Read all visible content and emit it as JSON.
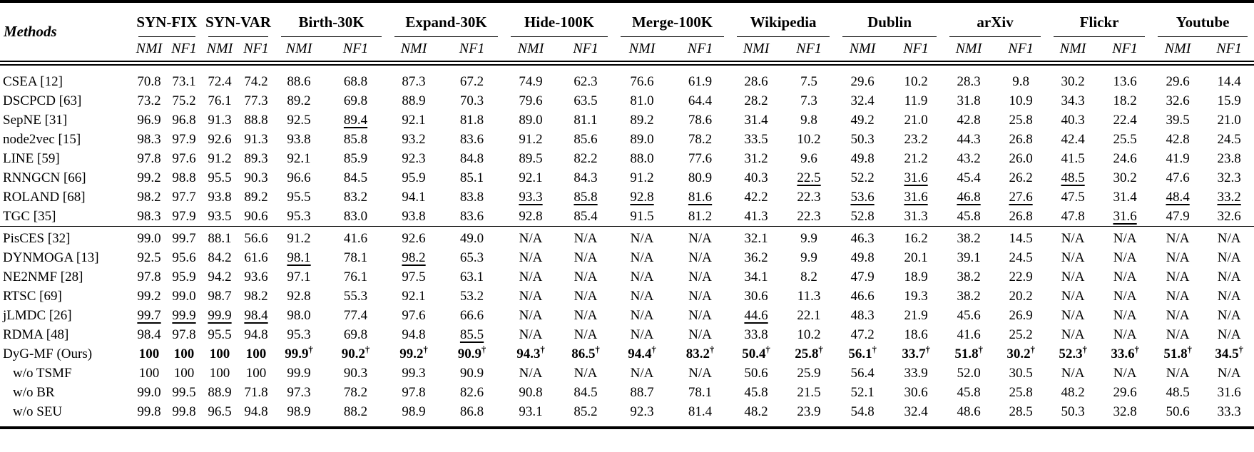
{
  "page": {
    "background": "#ffffff",
    "text_color": "#000000"
  },
  "table": {
    "methods_header": "Methods",
    "subheaders": [
      "NMI",
      "NF1"
    ],
    "datasets": [
      "SYN-FIX",
      "SYN-VAR",
      "Birth-30K",
      "Expand-30K",
      "Hide-100K",
      "Merge-100K",
      "Wikipedia",
      "Dublin",
      "arXiv",
      "Flickr",
      "Youtube"
    ],
    "marks": {
      "dagger": "†",
      "bold_flag": "b",
      "underline_flag": "u",
      "dagger_flag": "d",
      "na": "N/A"
    },
    "groups": [
      {
        "rows": [
          {
            "method": "CSEA [12]",
            "values": [
              "70.8",
              "73.1",
              "72.4",
              "74.2",
              "88.6",
              "68.8",
              "87.3",
              "67.2",
              "74.9",
              "62.3",
              "76.6",
              "61.9",
              "28.6",
              "7.5",
              "29.6",
              "10.2",
              "28.3",
              "9.8",
              "30.2",
              "13.6",
              "29.6",
              "14.4"
            ]
          },
          {
            "method": "DSCPCD [63]",
            "values": [
              "73.2",
              "75.2",
              "76.1",
              "77.3",
              "89.2",
              "69.8",
              "88.9",
              "70.3",
              "79.6",
              "63.5",
              "81.0",
              "64.4",
              "28.2",
              "7.3",
              "32.4",
              "11.9",
              "31.8",
              "10.9",
              "34.3",
              "18.2",
              "32.6",
              "15.9"
            ]
          },
          {
            "method": "SepNE [31]",
            "values": [
              "96.9",
              "96.8",
              "91.3",
              "88.8",
              "92.5",
              "89.4|u",
              "92.1",
              "81.8",
              "89.0",
              "81.1",
              "89.2",
              "78.6",
              "31.4",
              "9.8",
              "49.2",
              "21.0",
              "42.8",
              "25.8",
              "40.3",
              "22.4",
              "39.5",
              "21.0"
            ]
          },
          {
            "method": "node2vec [15]",
            "values": [
              "98.3",
              "97.9",
              "92.6",
              "91.3",
              "93.8",
              "85.8",
              "93.2",
              "83.6",
              "91.2",
              "85.6",
              "89.0",
              "78.2",
              "33.5",
              "10.2",
              "50.3",
              "23.2",
              "44.3",
              "26.8",
              "42.4",
              "25.5",
              "42.8",
              "24.5"
            ]
          },
          {
            "method": "LINE [59]",
            "values": [
              "97.8",
              "97.6",
              "91.2",
              "89.3",
              "92.1",
              "85.9",
              "92.3",
              "84.8",
              "89.5",
              "82.2",
              "88.0",
              "77.6",
              "31.2",
              "9.6",
              "49.8",
              "21.2",
              "43.2",
              "26.0",
              "41.5",
              "24.6",
              "41.9",
              "23.8"
            ]
          },
          {
            "method": "RNNGCN [66]",
            "values": [
              "99.2",
              "98.8",
              "95.5",
              "90.3",
              "96.6",
              "84.5",
              "95.9",
              "85.1",
              "92.1",
              "84.3",
              "91.2",
              "80.9",
              "40.3",
              "22.5|u",
              "52.2",
              "31.6|u",
              "45.4",
              "26.2",
              "48.5|u",
              "30.2",
              "47.6",
              "32.3"
            ]
          },
          {
            "method": "ROLAND [68]",
            "values": [
              "98.2",
              "97.7",
              "93.8",
              "89.2",
              "95.5",
              "83.2",
              "94.1",
              "83.8",
              "93.3|u",
              "85.8|u",
              "92.8|u",
              "81.6|u",
              "42.2",
              "22.3",
              "53.6|u",
              "31.6|u",
              "46.8|u",
              "27.6|u",
              "47.5",
              "31.4",
              "48.4|u",
              "33.2|u"
            ]
          },
          {
            "method": "TGC [35]",
            "values": [
              "98.3",
              "97.9",
              "93.5",
              "90.6",
              "95.3",
              "83.0",
              "93.8",
              "83.6",
              "92.8",
              "85.4",
              "91.5",
              "81.2",
              "41.3",
              "22.3",
              "52.8",
              "31.3",
              "45.8",
              "26.8",
              "47.8",
              "31.6|u",
              "47.9",
              "32.6"
            ]
          }
        ]
      },
      {
        "rows": [
          {
            "method": "PisCES [32]",
            "values": [
              "99.0",
              "99.7",
              "88.1",
              "56.6",
              "91.2",
              "41.6",
              "92.6",
              "49.0",
              "N/A",
              "N/A",
              "N/A",
              "N/A",
              "32.1",
              "9.9",
              "46.3",
              "16.2",
              "38.2",
              "14.5",
              "N/A",
              "N/A",
              "N/A",
              "N/A"
            ]
          },
          {
            "method": "DYNMOGA [13]",
            "values": [
              "92.5",
              "95.6",
              "84.2",
              "61.6",
              "98.1|u",
              "78.1",
              "98.2|u",
              "65.3",
              "N/A",
              "N/A",
              "N/A",
              "N/A",
              "36.2",
              "9.9",
              "49.8",
              "20.1",
              "39.1",
              "24.5",
              "N/A",
              "N/A",
              "N/A",
              "N/A"
            ]
          },
          {
            "method": "NE2NMF [28]",
            "values": [
              "97.8",
              "95.9",
              "94.2",
              "93.6",
              "97.1",
              "76.1",
              "97.5",
              "63.1",
              "N/A",
              "N/A",
              "N/A",
              "N/A",
              "34.1",
              "8.2",
              "47.9",
              "18.9",
              "38.2",
              "22.9",
              "N/A",
              "N/A",
              "N/A",
              "N/A"
            ]
          },
          {
            "method": "RTSC [69]",
            "values": [
              "99.2",
              "99.0",
              "98.7",
              "98.2",
              "92.8",
              "55.3",
              "92.1",
              "53.2",
              "N/A",
              "N/A",
              "N/A",
              "N/A",
              "30.6",
              "11.3",
              "46.6",
              "19.3",
              "38.2",
              "20.2",
              "N/A",
              "N/A",
              "N/A",
              "N/A"
            ]
          },
          {
            "method": "jLMDC [26]",
            "values": [
              "99.7|u",
              "99.9|u",
              "99.9|u",
              "98.4|u",
              "98.0",
              "77.4",
              "97.6",
              "66.6",
              "N/A",
              "N/A",
              "N/A",
              "N/A",
              "44.6|u",
              "22.1",
              "48.3",
              "21.9",
              "45.6",
              "26.9",
              "N/A",
              "N/A",
              "N/A",
              "N/A"
            ]
          },
          {
            "method": "RDMA [48]",
            "values": [
              "98.4",
              "97.8",
              "95.5",
              "94.8",
              "95.3",
              "69.8",
              "94.8",
              "85.5|u",
              "N/A",
              "N/A",
              "N/A",
              "N/A",
              "33.8",
              "10.2",
              "47.2",
              "18.6",
              "41.6",
              "25.2",
              "N/A",
              "N/A",
              "N/A",
              "N/A"
            ]
          },
          {
            "method": "DyG-MF (Ours)",
            "values": [
              "100|b",
              "100|b",
              "100|b",
              "100|b",
              "99.9|bd",
              "90.2|bd",
              "99.2|bd",
              "90.9|bd",
              "94.3|bd",
              "86.5|bd",
              "94.4|bd",
              "83.2|bd",
              "50.4|bd",
              "25.8|bd",
              "56.1|bd",
              "33.7|bd",
              "51.8|bd",
              "30.2|bd",
              "52.3|bd",
              "33.6|bd",
              "51.8|bd",
              "34.5|bd"
            ]
          },
          {
            "method": "w/o TSMF",
            "values": [
              "100",
              "100",
              "100",
              "100",
              "99.9",
              "90.3",
              "99.3",
              "90.9",
              "N/A",
              "N/A",
              "N/A",
              "N/A",
              "50.6",
              "25.9",
              "56.4",
              "33.9",
              "52.0",
              "30.5",
              "N/A",
              "N/A",
              "N/A",
              "N/A"
            ]
          },
          {
            "method": "w/o BR",
            "values": [
              "99.0",
              "99.5",
              "88.9",
              "71.8",
              "97.3",
              "78.2",
              "97.8",
              "82.6",
              "90.8",
              "84.5",
              "88.7",
              "78.1",
              "45.8",
              "21.5",
              "52.1",
              "30.6",
              "45.8",
              "25.8",
              "48.2",
              "29.6",
              "48.5",
              "31.6"
            ]
          },
          {
            "method": "w/o SEU",
            "values": [
              "99.8",
              "99.8",
              "96.5",
              "94.8",
              "98.9",
              "88.2",
              "98.9",
              "86.8",
              "93.1",
              "85.2",
              "92.3",
              "81.4",
              "48.2",
              "23.9",
              "54.8",
              "32.4",
              "48.6",
              "28.5",
              "50.3",
              "32.8",
              "50.6",
              "33.3"
            ]
          }
        ]
      }
    ]
  }
}
